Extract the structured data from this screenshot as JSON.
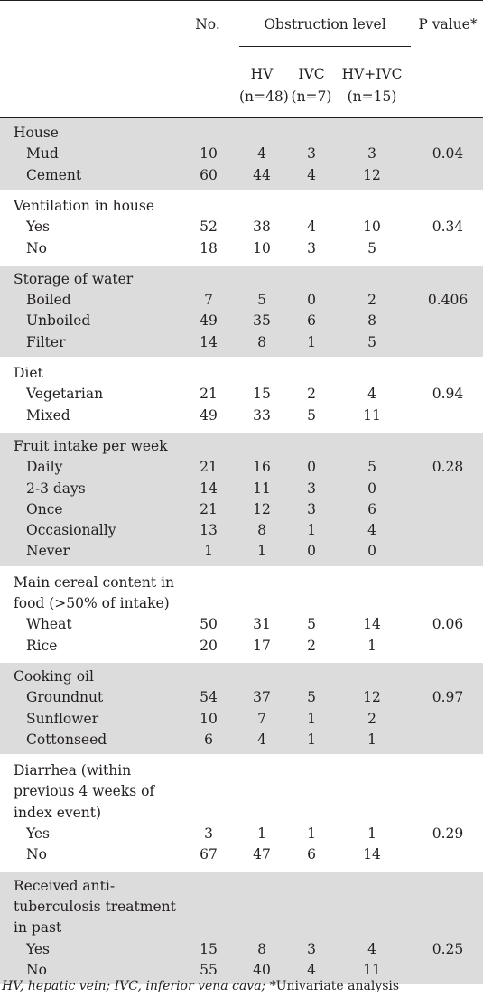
{
  "headers": {
    "no": "No.",
    "obstruction": "Obstruction level",
    "p_value": "P value*",
    "hv": "HV",
    "hv_n": "(n=48)",
    "ivc": "IVC",
    "ivc_n": "(n=7)",
    "hvivc": "HV+IVC",
    "hvivc_n": "(n=15)"
  },
  "groups": [
    {
      "title": [
        "House"
      ],
      "pvalue": "0.04",
      "shaded": true,
      "rows": [
        {
          "label": "Mud",
          "values": [
            "10",
            "4",
            "3",
            "3"
          ]
        },
        {
          "label": "Cement",
          "values": [
            "60",
            "44",
            "4",
            "12"
          ]
        }
      ]
    },
    {
      "title": [
        "Ventilation in house"
      ],
      "pvalue": "0.34",
      "shaded": false,
      "rows": [
        {
          "label": "Yes",
          "values": [
            "52",
            "38",
            "4",
            "10"
          ]
        },
        {
          "label": "No",
          "values": [
            "18",
            "10",
            "3",
            "5"
          ]
        }
      ]
    },
    {
      "title": [
        "Storage of water"
      ],
      "pvalue": "0.406",
      "shaded": true,
      "rows": [
        {
          "label": "Boiled",
          "values": [
            "7",
            "5",
            "0",
            "2"
          ]
        },
        {
          "label": "Unboiled",
          "values": [
            "49",
            "35",
            "6",
            "8"
          ]
        },
        {
          "label": "Filter",
          "values": [
            "14",
            "8",
            "1",
            "5"
          ]
        }
      ]
    },
    {
      "title": [
        "Diet"
      ],
      "pvalue": "0.94",
      "shaded": false,
      "rows": [
        {
          "label": "Vegetarian",
          "values": [
            "21",
            "15",
            "2",
            "4"
          ]
        },
        {
          "label": "Mixed",
          "values": [
            "49",
            "33",
            "5",
            "11"
          ]
        }
      ]
    },
    {
      "title": [
        "Fruit intake per week"
      ],
      "pvalue": "0.28",
      "shaded": true,
      "rows": [
        {
          "label": "Daily",
          "values": [
            "21",
            "16",
            "0",
            "5"
          ]
        },
        {
          "label": "2-3 days",
          "values": [
            "14",
            "11",
            "3",
            "0"
          ]
        },
        {
          "label": "Once",
          "values": [
            "21",
            "12",
            "3",
            "6"
          ]
        },
        {
          "label": "Occasionally",
          "values": [
            "13",
            "8",
            "1",
            "4"
          ]
        },
        {
          "label": "Never",
          "values": [
            "1",
            "1",
            "0",
            "0"
          ]
        }
      ]
    },
    {
      "title": [
        "Main cereal content in",
        "food (>50% of intake)"
      ],
      "pvalue": "0.06",
      "shaded": false,
      "rows": [
        {
          "label": "Wheat",
          "values": [
            "50",
            "31",
            "5",
            "14"
          ]
        },
        {
          "label": "Rice",
          "values": [
            "20",
            "17",
            "2",
            "1"
          ]
        }
      ]
    },
    {
      "title": [
        "Cooking oil"
      ],
      "pvalue": "0.97",
      "shaded": true,
      "rows": [
        {
          "label": "Groundnut",
          "values": [
            "54",
            "37",
            "5",
            "12"
          ]
        },
        {
          "label": "Sunflower",
          "values": [
            "10",
            "7",
            "1",
            "2"
          ]
        },
        {
          "label": "Cottonseed",
          "values": [
            "6",
            "4",
            "1",
            "1"
          ]
        }
      ]
    },
    {
      "title": [
        "Diarrhea (within",
        "previous 4 weeks of",
        "index event)"
      ],
      "pvalue": "0.29",
      "shaded": false,
      "rows": [
        {
          "label": "Yes",
          "values": [
            "3",
            "1",
            "1",
            "1"
          ]
        },
        {
          "label": "No",
          "values": [
            "67",
            "47",
            "6",
            "14"
          ]
        }
      ]
    },
    {
      "title": [
        "Received anti-",
        "tuberculosis treatment",
        "in past"
      ],
      "pvalue": "0.25",
      "shaded": true,
      "rows": [
        {
          "label": "Yes",
          "values": [
            "15",
            "8",
            "3",
            "4"
          ]
        },
        {
          "label": "No",
          "values": [
            "55",
            "40",
            "4",
            "11"
          ]
        }
      ]
    }
  ],
  "footnote": {
    "abbrev": "HV, hepatic vein; IVC, inferior vena cava;",
    "note": " *Univariate analysis"
  },
  "colors": {
    "shade": "#dcdcdc",
    "text": "#231f20"
  }
}
